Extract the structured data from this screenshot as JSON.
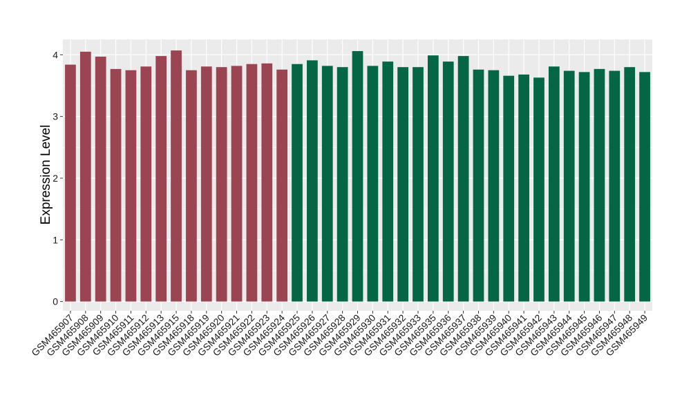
{
  "chart_data": {
    "type": "bar",
    "title": "",
    "xlabel": "",
    "ylabel": "Expression Level",
    "ylim": [
      -0.15,
      4.25
    ],
    "yticks": [
      0,
      1,
      2,
      3,
      4
    ],
    "grid": true,
    "legend": "none",
    "panel_background": "#ebebeb",
    "grid_color": "#ffffff",
    "tick_label_color": "#1a1a1a",
    "categories": [
      "GSM465907",
      "GSM465908",
      "GSM465909",
      "GSM465910",
      "GSM465911",
      "GSM465912",
      "GSM465913",
      "GSM465915",
      "GSM465918",
      "GSM465919",
      "GSM465920",
      "GSM465921",
      "GSM465922",
      "GSM465923",
      "GSM465924",
      "GSM465925",
      "GSM465926",
      "GSM465927",
      "GSM465928",
      "GSM465929",
      "GSM465930",
      "GSM465931",
      "GSM465932",
      "GSM465933",
      "GSM465935",
      "GSM465936",
      "GSM465937",
      "GSM465938",
      "GSM465939",
      "GSM465940",
      "GSM465941",
      "GSM465942",
      "GSM465943",
      "GSM465944",
      "GSM465945",
      "GSM465946",
      "GSM465947",
      "GSM465948",
      "GSM465949"
    ],
    "values": [
      3.84,
      4.05,
      3.97,
      3.77,
      3.75,
      3.81,
      3.98,
      4.07,
      3.75,
      3.81,
      3.8,
      3.82,
      3.85,
      3.86,
      3.76,
      3.85,
      3.91,
      3.82,
      3.8,
      4.06,
      3.82,
      3.89,
      3.8,
      3.8,
      3.99,
      3.89,
      3.98,
      3.76,
      3.75,
      3.66,
      3.68,
      3.63,
      3.81,
      3.74,
      3.72,
      3.77,
      3.74,
      3.8,
      3.72
    ],
    "groups": [
      0,
      0,
      0,
      0,
      0,
      0,
      0,
      0,
      0,
      0,
      0,
      0,
      0,
      0,
      0,
      1,
      1,
      1,
      1,
      1,
      1,
      1,
      1,
      1,
      1,
      1,
      1,
      1,
      1,
      1,
      1,
      1,
      1,
      1,
      1,
      1,
      1,
      1,
      1
    ],
    "group_colors": [
      "#9b4452",
      "#046645"
    ]
  }
}
